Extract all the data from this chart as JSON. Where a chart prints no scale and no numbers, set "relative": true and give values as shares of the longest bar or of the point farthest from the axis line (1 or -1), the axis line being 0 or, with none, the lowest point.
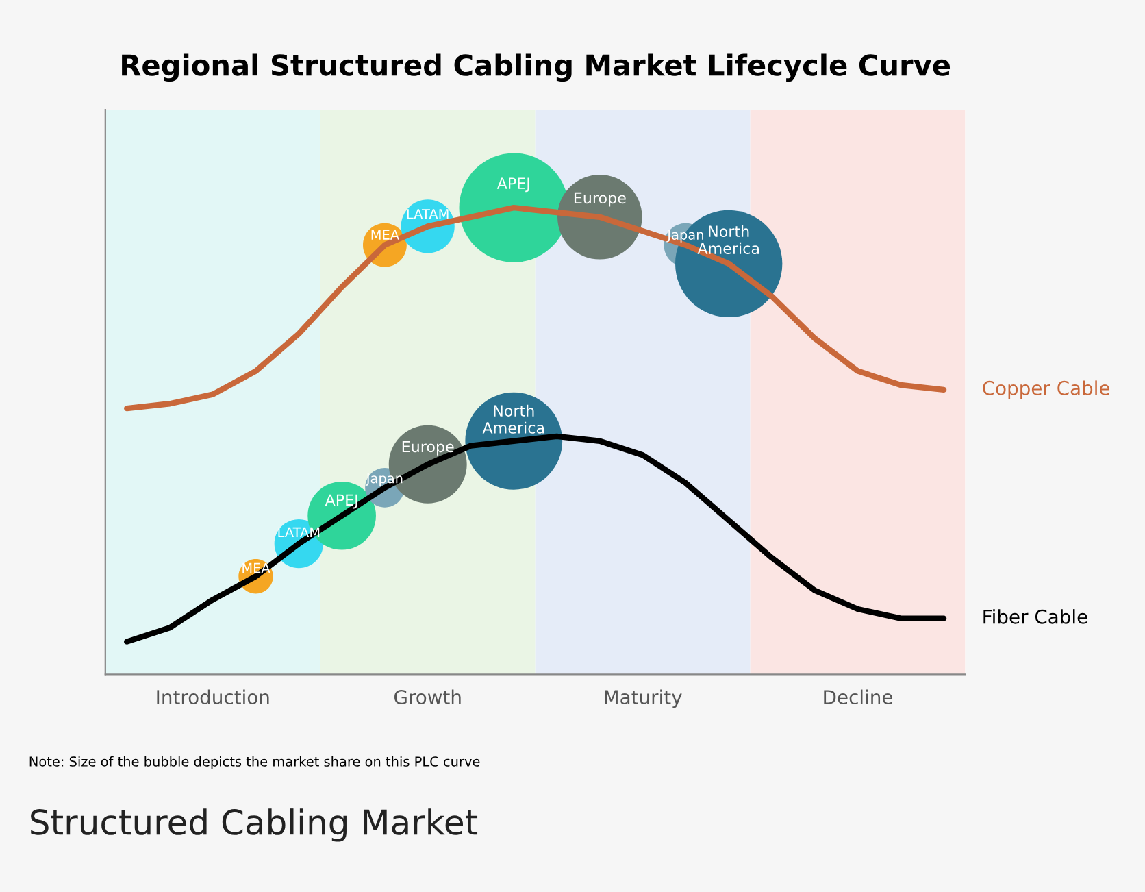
{
  "chart_data": {
    "type": "line",
    "title": "Regional Structured Cabling Market Lifecycle Curve",
    "relative": true,
    "categories": [
      null,
      null,
      "Introduction",
      null,
      null,
      null,
      null,
      "Growth",
      null,
      null,
      null,
      null,
      "Maturity",
      null,
      null,
      null,
      null,
      "Decline",
      null,
      null
    ],
    "series": [
      {
        "type": "bubble",
        "name": "MEA",
        "color": "#f5a623",
        "values": [
          null,
          null,
          null,
          null,
          null,
          null,
          0.92,
          null,
          null,
          null,
          null,
          null,
          null,
          null,
          null,
          null,
          null,
          null,
          null,
          null
        ],
        "sizes": [
          null,
          null,
          null,
          null,
          null,
          null,
          0.16,
          null,
          null,
          null,
          null,
          null,
          null,
          null,
          null,
          null,
          null,
          null,
          null,
          null
        ]
      },
      {
        "type": "bubble",
        "name": "LATAM",
        "color": "#35d8f0",
        "values": [
          null,
          null,
          null,
          null,
          null,
          null,
          null,
          0.96,
          null,
          null,
          null,
          null,
          null,
          null,
          null,
          null,
          null,
          null,
          null,
          null
        ],
        "sizes": [
          null,
          null,
          null,
          null,
          null,
          null,
          null,
          0.24,
          null,
          null,
          null,
          null,
          null,
          null,
          null,
          null,
          null,
          null,
          null,
          null
        ]
      },
      {
        "type": "bubble",
        "name": "APEJ",
        "color": "#2fd59a",
        "values": [
          null,
          null,
          null,
          null,
          null,
          null,
          null,
          null,
          null,
          1.0,
          null,
          null,
          null,
          null,
          null,
          null,
          null,
          null,
          null,
          null
        ],
        "sizes": [
          null,
          null,
          null,
          null,
          null,
          null,
          null,
          null,
          null,
          1.0,
          null,
          null,
          null,
          null,
          null,
          null,
          null,
          null,
          null,
          null
        ]
      },
      {
        "type": "bubble",
        "name": "Europe",
        "color": "#6b7a70",
        "values": [
          null,
          null,
          null,
          null,
          null,
          null,
          null,
          null,
          null,
          null,
          null,
          0.98,
          null,
          null,
          null,
          null,
          null,
          null,
          null,
          null
        ],
        "sizes": [
          null,
          null,
          null,
          null,
          null,
          null,
          null,
          null,
          null,
          null,
          null,
          0.6,
          null,
          null,
          null,
          null,
          null,
          null,
          null,
          null
        ]
      },
      {
        "type": "bubble",
        "name": "Japan",
        "color": "#7aa6b8",
        "values": [
          null,
          null,
          null,
          null,
          null,
          null,
          null,
          null,
          null,
          null,
          null,
          null,
          null,
          0.92,
          null,
          null,
          null,
          null,
          null,
          null
        ],
        "sizes": [
          null,
          null,
          null,
          null,
          null,
          null,
          null,
          null,
          null,
          null,
          null,
          null,
          null,
          0.16,
          null,
          null,
          null,
          null,
          null,
          null
        ]
      },
      {
        "type": "bubble",
        "name": "North\nAmerica",
        "color": "#2a7391",
        "values": [
          null,
          null,
          null,
          null,
          null,
          null,
          null,
          null,
          null,
          null,
          null,
          null,
          null,
          null,
          0.88,
          null,
          null,
          null,
          null,
          null
        ],
        "sizes": [
          null,
          null,
          null,
          null,
          null,
          null,
          null,
          null,
          null,
          null,
          null,
          null,
          null,
          null,
          0.96,
          null,
          null,
          null,
          null,
          null
        ]
      },
      {
        "type": "bubble",
        "name": "MEA",
        "color": "#f5a623",
        "values": [
          null,
          null,
          null,
          0.21,
          null,
          null,
          null,
          null,
          null,
          null,
          null,
          null,
          null,
          null,
          null,
          null,
          null,
          null,
          null,
          null
        ],
        "sizes": [
          null,
          null,
          null,
          0.1,
          null,
          null,
          null,
          null,
          null,
          null,
          null,
          null,
          null,
          null,
          null,
          null,
          null,
          null,
          null,
          null
        ]
      },
      {
        "type": "bubble",
        "name": "LATAM",
        "color": "#35d8f0",
        "values": [
          null,
          null,
          null,
          null,
          0.28,
          null,
          null,
          null,
          null,
          null,
          null,
          null,
          null,
          null,
          null,
          null,
          null,
          null,
          null,
          null
        ],
        "sizes": [
          null,
          null,
          null,
          null,
          0.2,
          null,
          null,
          null,
          null,
          null,
          null,
          null,
          null,
          null,
          null,
          null,
          null,
          null,
          null,
          null
        ]
      },
      {
        "type": "bubble",
        "name": "APEJ",
        "color": "#2fd59a",
        "values": [
          null,
          null,
          null,
          null,
          null,
          0.34,
          null,
          null,
          null,
          null,
          null,
          null,
          null,
          null,
          null,
          null,
          null,
          null,
          null,
          null
        ],
        "sizes": [
          null,
          null,
          null,
          null,
          null,
          0.39,
          null,
          null,
          null,
          null,
          null,
          null,
          null,
          null,
          null,
          null,
          null,
          null,
          null,
          null
        ]
      },
      {
        "type": "bubble",
        "name": "Japan",
        "color": "#7aa6b8",
        "values": [
          null,
          null,
          null,
          null,
          null,
          null,
          0.4,
          null,
          null,
          null,
          null,
          null,
          null,
          null,
          null,
          null,
          null,
          null,
          null,
          null
        ],
        "sizes": [
          null,
          null,
          null,
          null,
          null,
          null,
          0.13,
          null,
          null,
          null,
          null,
          null,
          null,
          null,
          null,
          null,
          null,
          null,
          null,
          null
        ]
      },
      {
        "type": "bubble",
        "name": "Europe",
        "color": "#6b7a70",
        "values": [
          null,
          null,
          null,
          null,
          null,
          null,
          null,
          0.45,
          null,
          null,
          null,
          null,
          null,
          null,
          null,
          null,
          null,
          null,
          null,
          null
        ],
        "sizes": [
          null,
          null,
          null,
          null,
          null,
          null,
          null,
          0.51,
          null,
          null,
          null,
          null,
          null,
          null,
          null,
          null,
          null,
          null,
          null,
          null
        ]
      },
      {
        "type": "bubble",
        "name": "North\nAmerica",
        "color": "#2a7391",
        "values": [
          null,
          null,
          null,
          null,
          null,
          null,
          null,
          null,
          null,
          0.5,
          null,
          null,
          null,
          null,
          null,
          null,
          null,
          null,
          null,
          null
        ],
        "sizes": [
          null,
          null,
          null,
          null,
          null,
          null,
          null,
          null,
          null,
          0.79,
          null,
          null,
          null,
          null,
          null,
          null,
          null,
          null,
          null,
          null
        ]
      },
      {
        "name": "Copper Cable",
        "color": "#c9683a",
        "values": [
          0.57,
          0.58,
          0.6,
          0.65,
          0.73,
          0.83,
          0.92,
          0.96,
          0.98,
          1.0,
          0.99,
          0.98,
          0.95,
          0.92,
          0.88,
          0.81,
          0.72,
          0.65,
          0.62,
          0.61
        ]
      },
      {
        "name": "Fiber Cable",
        "color": "#000000",
        "values": [
          0.07,
          0.1,
          0.16,
          0.21,
          0.28,
          0.34,
          0.4,
          0.45,
          0.49,
          0.5,
          0.51,
          0.5,
          0.47,
          0.41,
          0.33,
          0.25,
          0.18,
          0.14,
          0.12,
          0.12
        ]
      }
    ],
    "annotations": [
      "Note: Size of the bubble depicts the market share on this PLC curve",
      "Structured Cabling Market"
    ],
    "legend": false
  }
}
